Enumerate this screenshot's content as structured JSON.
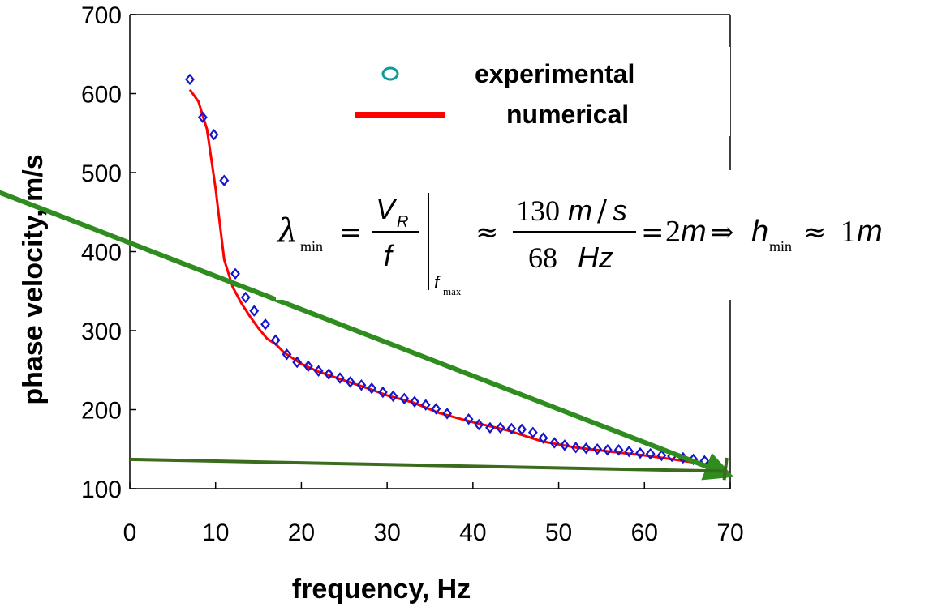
{
  "chart_data": {
    "type": "scatter",
    "xlabel": "frequency, Hz",
    "ylabel": "phase velocity, m/s",
    "xlim": [
      0,
      70
    ],
    "ylim": [
      100,
      700
    ],
    "xticks": [
      "0",
      "10",
      "20",
      "30",
      "40",
      "50",
      "60",
      "70"
    ],
    "yticks": [
      "100",
      "200",
      "300",
      "400",
      "500",
      "600",
      "700"
    ],
    "grid": false,
    "legend_placement": "top-right",
    "series": [
      {
        "name": "experimental",
        "kind": "markers",
        "color": "#1414cc",
        "legend_marker_color": "#0f9a9a",
        "x": [
          7,
          8.5,
          9.8,
          11,
          12.3,
          13.5,
          14.5,
          15.8,
          17,
          18.3,
          19.5,
          20.8,
          22,
          23.2,
          24.5,
          25.7,
          27,
          28.2,
          29.5,
          30.7,
          32,
          33.2,
          34.5,
          35.7,
          37,
          39.5,
          40.7,
          42,
          43.2,
          44.5,
          45.7,
          47,
          48.2,
          49.5,
          50.7,
          52,
          53.2,
          54.5,
          55.7,
          57,
          58.2,
          59.5,
          60.7,
          62,
          63.2,
          64.5,
          65.7,
          67,
          68.2
        ],
        "y": [
          618,
          570,
          548,
          490,
          372,
          342,
          325,
          308,
          288,
          270,
          260,
          255,
          249,
          245,
          240,
          235,
          231,
          227,
          222,
          217,
          214,
          210,
          206,
          201,
          195,
          188,
          181,
          177,
          177,
          176,
          175,
          171,
          164,
          158,
          155,
          152,
          151,
          150,
          149,
          149,
          147,
          145,
          144,
          142,
          141,
          139,
          137,
          135,
          132
        ]
      },
      {
        "name": "numerical",
        "kind": "line",
        "color": "#ff0000",
        "x": [
          7,
          8,
          9,
          10,
          11,
          12,
          13,
          14,
          15,
          16,
          17,
          18,
          20,
          22,
          25,
          28,
          30,
          33,
          36,
          38,
          40,
          44,
          48,
          52,
          56,
          60,
          64,
          67,
          68
        ],
        "y": [
          605,
          590,
          555,
          480,
          390,
          355,
          335,
          318,
          303,
          290,
          283,
          272,
          258,
          248,
          237,
          226,
          218,
          209,
          196,
          190,
          184,
          174,
          160,
          152,
          147,
          142,
          136,
          131,
          129
        ]
      }
    ],
    "annotations": {
      "equation": {
        "lambda": "λ",
        "lambda_sub": "min",
        "vr": "V",
        "vr_sub": "R",
        "f": "f",
        "eval_sub": "f",
        "eval_subsub": "max",
        "num_value": "130",
        "num_unit_m": "m",
        "num_unit_s": "s",
        "den_value": "68",
        "den_unit": "Hz",
        "result": "2",
        "result_unit": "m",
        "h": "h",
        "h_sub": "min",
        "h_value": "1",
        "h_unit": "m"
      },
      "arrows_color": "#2f8c1e",
      "baseline_line_color": "#3b6b1c",
      "long_arrow": {
        "from": [
          0,
          386
        ],
        "to": [
          70,
          115
        ]
      },
      "short_arrow": {
        "from": [
          0,
          137
        ],
        "to": [
          70,
          120
        ]
      }
    }
  }
}
